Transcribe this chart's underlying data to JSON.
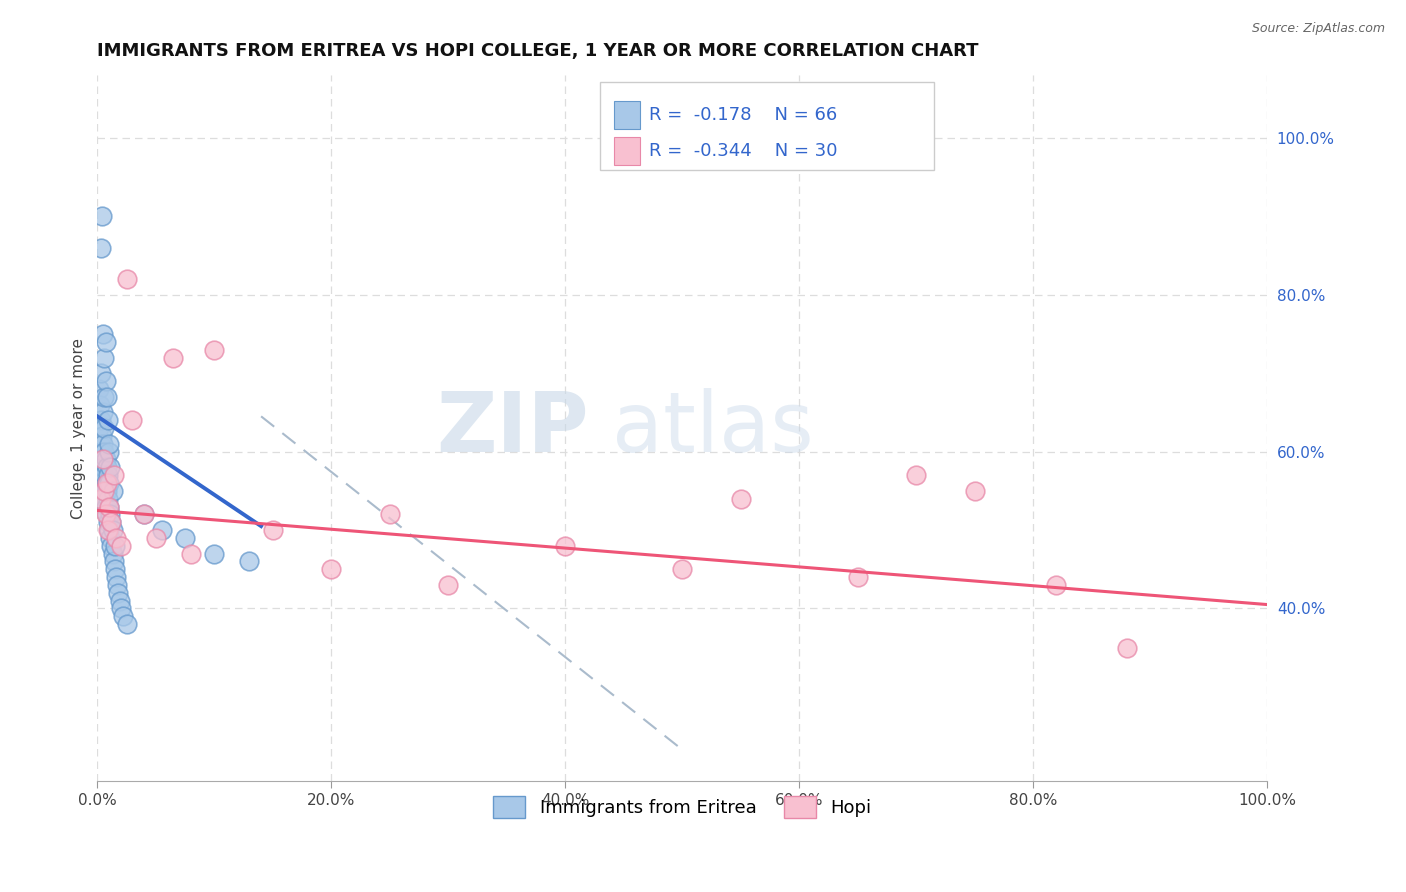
{
  "title": "IMMIGRANTS FROM ERITREA VS HOPI COLLEGE, 1 YEAR OR MORE CORRELATION CHART",
  "source": "Source: ZipAtlas.com",
  "xlabel": "",
  "ylabel": "College, 1 year or more",
  "xlim": [
    0.0,
    1.0
  ],
  "ylim": [
    0.18,
    1.08
  ],
  "xtick_labels": [
    "0.0%",
    "20.0%",
    "40.0%",
    "60.0%",
    "80.0%",
    "100.0%"
  ],
  "xtick_vals": [
    0.0,
    0.2,
    0.4,
    0.6,
    0.8,
    1.0
  ],
  "ytick_right_labels": [
    "100.0%",
    "80.0%",
    "60.0%",
    "40.0%"
  ],
  "ytick_right_vals": [
    1.0,
    0.8,
    0.6,
    0.4
  ],
  "blue_color": "#a8c8e8",
  "pink_color": "#f8c0d0",
  "blue_edge": "#6699cc",
  "pink_edge": "#e888a8",
  "blue_line_color": "#3366cc",
  "pink_line_color": "#ee5577",
  "dashed_line_color": "#aabbcc",
  "background_color": "#ffffff",
  "grid_color": "#dddddd",
  "R_blue": -0.178,
  "N_blue": 66,
  "R_pink": -0.344,
  "N_pink": 30,
  "legend_label_blue": "Immigrants from Eritrea",
  "legend_label_pink": "Hopi",
  "watermark_zip": "ZIP",
  "watermark_atlas": "atlas",
  "blue_line_x": [
    0.0,
    0.14
  ],
  "blue_line_y": [
    0.645,
    0.505
  ],
  "pink_line_x": [
    0.0,
    1.0
  ],
  "pink_line_y": [
    0.525,
    0.405
  ],
  "dashed_line_x": [
    0.14,
    0.5
  ],
  "dashed_line_y": [
    0.645,
    0.22
  ],
  "title_fontsize": 13,
  "axis_label_fontsize": 11,
  "tick_fontsize": 11,
  "legend_fontsize": 13
}
